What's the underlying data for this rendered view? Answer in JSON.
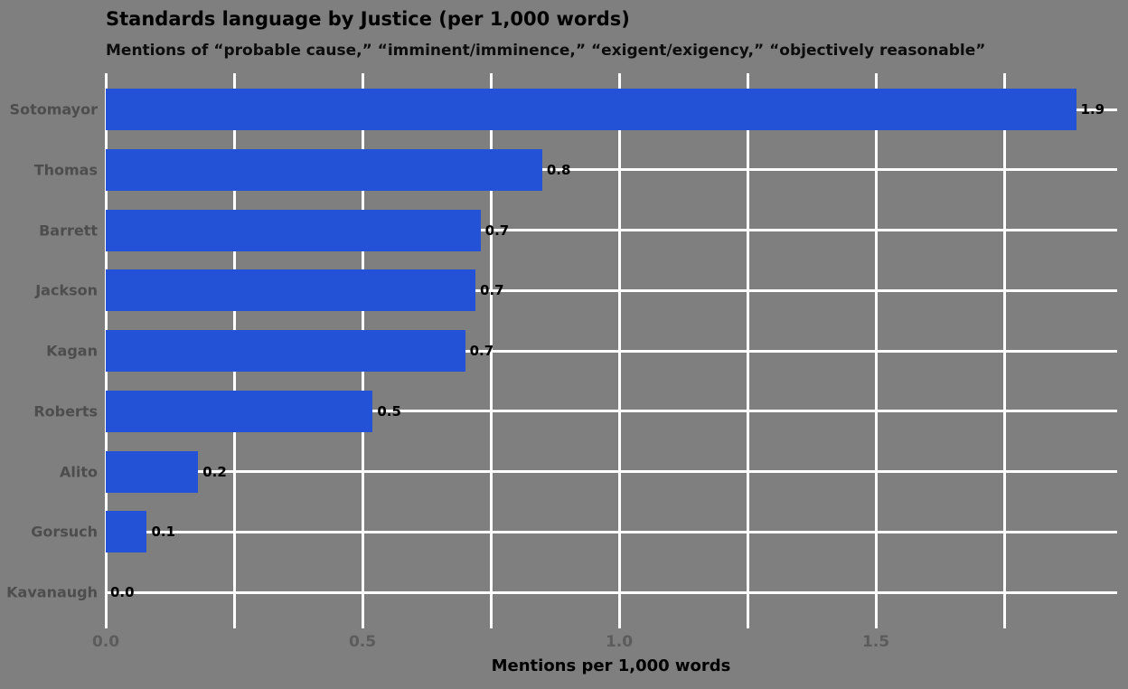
{
  "colors": {
    "background": "#7f7f7f",
    "bar": "#2352d7",
    "grid": "#ffffff",
    "title": "#000000",
    "subtitle": "#0d0d0d",
    "y_tick_label": "#4d4d4d",
    "x_tick_label": "#5c5c5c",
    "value_label": "#000000",
    "x_axis_label": "#000000"
  },
  "chart_data": {
    "type": "bar",
    "orientation": "horizontal",
    "title": "Standards language by Justice (per 1,000 words)",
    "subtitle": "Mentions of “probable cause,” “imminent/imminence,” “exigent/exigency,” “objectively reasonable”",
    "xlabel": "Mentions per 1,000 words",
    "categories": [
      "Sotomayor",
      "Thomas",
      "Barrett",
      "Jackson",
      "Kagan",
      "Roberts",
      "Alito",
      "Gorsuch",
      "Kavanaugh"
    ],
    "values": [
      1.89,
      0.85,
      0.73,
      0.72,
      0.7,
      0.52,
      0.18,
      0.08,
      0.0
    ],
    "value_labels": [
      "1.9",
      "0.8",
      "0.7",
      "0.7",
      "0.7",
      "0.5",
      "0.2",
      "0.1",
      "0.0"
    ],
    "xticks": [
      0.0,
      0.5,
      1.0,
      1.5
    ],
    "xtick_labels": [
      "0.0",
      "0.5",
      "1.0",
      "1.5"
    ],
    "minor_grid_step": 0.25,
    "xlim": [
      0,
      1.97
    ],
    "grid": "both",
    "legend": false
  }
}
